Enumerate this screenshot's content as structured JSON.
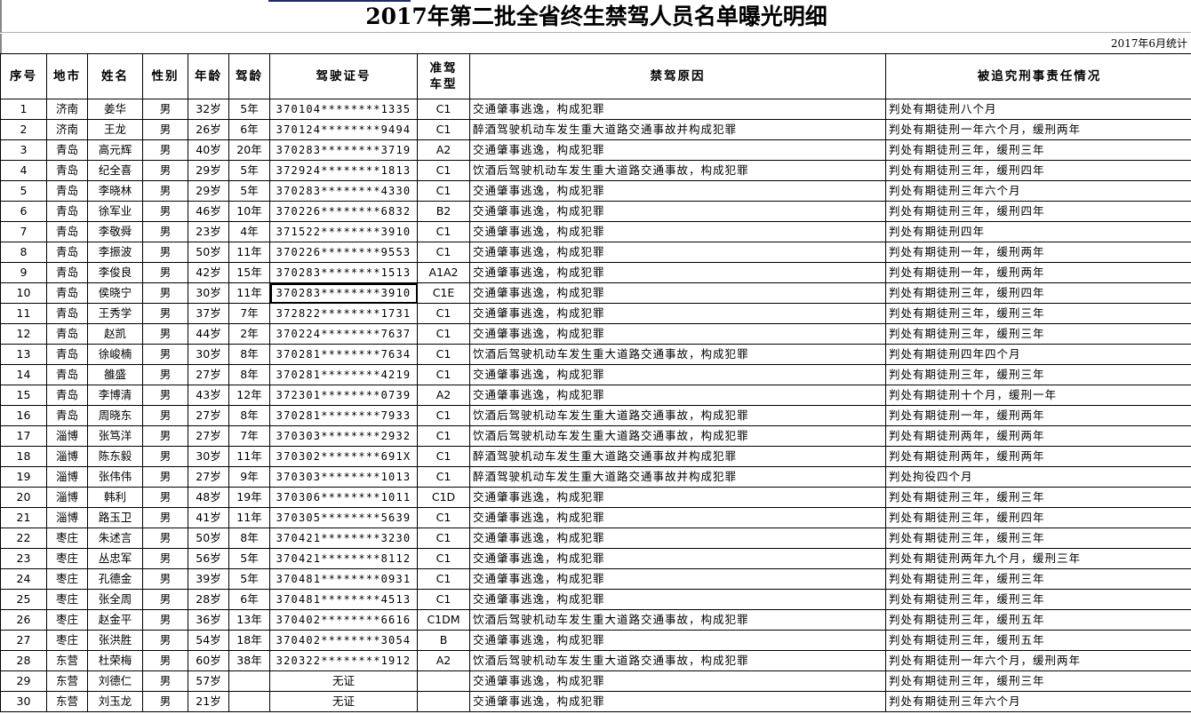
{
  "title": "2017年第二批全省终生禁驾人员名单曝光明细",
  "stat_date": "2017年6月统计",
  "headers": [
    "序号",
    "地市",
    "姓名",
    "性别",
    "年龄",
    "驾龄",
    "驾驶证号",
    "准驾车型",
    "禁驾原因",
    "被追究刑事责任情况"
  ],
  "rows": [
    [
      "1",
      "济南",
      "姜华",
      "男",
      "32岁",
      "5年",
      "370104********1335",
      "C1",
      "交通肇事逃逸，构成犯罪",
      "判处有期徒刑八个月"
    ],
    [
      "2",
      "济南",
      "王龙",
      "男",
      "26岁",
      "6年",
      "370124********9494",
      "C1",
      "醉酒驾驶机动车发生重大道路交通事故并构成犯罪",
      "判处有期徒刑一年六个月，缓刑两年"
    ],
    [
      "3",
      "青岛",
      "高元辉",
      "男",
      "40岁",
      "20年",
      "370283********3719",
      "A2",
      "交通肇事逃逸，构成犯罪",
      "判处有期徒刑三年，缓刑三年"
    ],
    [
      "4",
      "青岛",
      "纪全喜",
      "男",
      "29岁",
      "5年",
      "372924********1813",
      "C1",
      "饮酒后驾驶机动车发生重大道路交通事故，构成犯罪",
      "判处有期徒刑三年，缓刑四年"
    ],
    [
      "5",
      "青岛",
      "李晓林",
      "男",
      "29岁",
      "5年",
      "370283********4330",
      "C1",
      "交通肇事逃逸，构成犯罪",
      "判处有期徒刑三年六个月"
    ],
    [
      "6",
      "青岛",
      "徐军业",
      "男",
      "46岁",
      "10年",
      "370226********6832",
      "B2",
      "交通肇事逃逸，构成犯罪",
      "判处有期徒刑三年，缓刑四年"
    ],
    [
      "7",
      "青岛",
      "李敬舜",
      "男",
      "23岁",
      "4年",
      "371522********3910",
      "C1",
      "交通肇事逃逸，构成犯罪",
      "判处有期徒刑四年"
    ],
    [
      "8",
      "青岛",
      "李振波",
      "男",
      "50岁",
      "11年",
      "370226********9553",
      "C1",
      "交通肇事逃逸，构成犯罪",
      "判处有期徒刑一年，缓刑两年"
    ],
    [
      "9",
      "青岛",
      "李俊良",
      "男",
      "42岁",
      "15年",
      "370283********1513",
      "A1A2",
      "交通肇事逃逸，构成犯罪",
      "判处有期徒刑一年，缓刑两年"
    ],
    [
      "10",
      "青岛",
      "侯晓宁",
      "男",
      "30岁",
      "11年",
      "370283********3910",
      "C1E",
      "交通肇事逃逸，构成犯罪",
      "判处有期徒刑三年，缓刑四年"
    ],
    [
      "11",
      "青岛",
      "王秀学",
      "男",
      "37岁",
      "7年",
      "372822********1731",
      "C1",
      "交通肇事逃逸，构成犯罪",
      "判处有期徒刑三年，缓刑三年"
    ],
    [
      "12",
      "青岛",
      "赵凯",
      "男",
      "44岁",
      "2年",
      "370224********7637",
      "C1",
      "交通肇事逃逸，构成犯罪",
      "判处有期徒刑三年，缓刑三年"
    ],
    [
      "13",
      "青岛",
      "徐峻楠",
      "男",
      "30岁",
      "8年",
      "370281********7634",
      "C1",
      "饮酒后驾驶机动车发生重大道路交通事故，构成犯罪",
      "判处有期徒刑四年四个月"
    ],
    [
      "14",
      "青岛",
      "雒盛",
      "男",
      "27岁",
      "8年",
      "370281********4219",
      "C1",
      "交通肇事逃逸，构成犯罪",
      "判处有期徒刑三年，缓刑三年"
    ],
    [
      "15",
      "青岛",
      "李博清",
      "男",
      "43岁",
      "12年",
      "372301********0739",
      "A2",
      "交通肇事逃逸，构成犯罪",
      "判处有期徒刑十个月，缓刑一年"
    ],
    [
      "16",
      "青岛",
      "周晓东",
      "男",
      "27岁",
      "8年",
      "370281********7933",
      "C1",
      "饮酒后驾驶机动车发生重大道路交通事故，构成犯罪",
      "判处有期徒刑一年，缓刑两年"
    ],
    [
      "17",
      "淄博",
      "张笃洋",
      "男",
      "27岁",
      "7年",
      "370303********2932",
      "C1",
      "饮酒后驾驶机动车发生重大道路交通事故，构成犯罪",
      "判处有期徒刑两年，缓刑两年"
    ],
    [
      "18",
      "淄博",
      "陈东毅",
      "男",
      "30岁",
      "11年",
      "370302********691X",
      "C1",
      "醉酒驾驶机动车发生重大道路交通事故并构成犯罪",
      "判处有期徒刑两年，缓刑两年"
    ],
    [
      "19",
      "淄博",
      "张伟伟",
      "男",
      "27岁",
      "9年",
      "370303********1013",
      "C1",
      "醉酒驾驶机动车发生重大道路交通事故并构成犯罪",
      "判处拘役四个月"
    ],
    [
      "20",
      "淄博",
      "韩利",
      "男",
      "48岁",
      "19年",
      "370306********1011",
      "C1D",
      "交通肇事逃逸，构成犯罪",
      "判处有期徒刑三年，缓刑三年"
    ],
    [
      "21",
      "淄博",
      "路玉卫",
      "男",
      "41岁",
      "11年",
      "370305********5639",
      "C1",
      "交通肇事逃逸，构成犯罪",
      "判处有期徒刑三年，缓刑四年"
    ],
    [
      "22",
      "枣庄",
      "朱述言",
      "男",
      "50岁",
      "8年",
      "370421********3230",
      "C1",
      "交通肇事逃逸，构成犯罪",
      "判处有期徒刑三年，缓刑三年"
    ],
    [
      "23",
      "枣庄",
      "丛忠军",
      "男",
      "56岁",
      "5年",
      "370421********8112",
      "C1",
      "交通肇事逃逸，构成犯罪",
      "判处有期徒刑两年九个月，缓刑三年"
    ],
    [
      "24",
      "枣庄",
      "孔德金",
      "男",
      "39岁",
      "5年",
      "370481********0931",
      "C1",
      "交通肇事逃逸，构成犯罪",
      "判处有期徒刑三年，缓刑三年"
    ],
    [
      "25",
      "枣庄",
      "张全周",
      "男",
      "28岁",
      "6年",
      "370481********4513",
      "C1",
      "交通肇事逃逸，构成犯罪",
      "判处有期徒刑三年，缓刑三年"
    ],
    [
      "26",
      "枣庄",
      "赵金平",
      "男",
      "36岁",
      "13年",
      "370402********6616",
      "C1DM",
      "饮酒后驾驶机动车发生重大道路交通事故，构成犯罪",
      "判处有期徒刑三年，缓刑五年"
    ],
    [
      "27",
      "枣庄",
      "张洪胜",
      "男",
      "54岁",
      "18年",
      "370402********3054",
      "B",
      "交通肇事逃逸，构成犯罪",
      "判处有期徒刑三年，缓刑五年"
    ],
    [
      "28",
      "东营",
      "杜荣梅",
      "男",
      "60岁",
      "38年",
      "320322********1912",
      "A2",
      "饮酒后驾驶机动车发生重大道路交通事故，构成犯罪",
      "判处有期徒刑一年六个月，缓刑两年"
    ],
    [
      "29",
      "东营",
      "刘德仁",
      "男",
      "57岁",
      "",
      "无证",
      "",
      "交通肇事逃逸，构成犯罪",
      "判处有期徒刑三年，缓刑三年"
    ],
    [
      "30",
      "东营",
      "刘玉龙",
      "男",
      "21岁",
      "",
      "无证",
      "",
      "交通肇事逃逸，构成犯罪",
      "判处有期徒刑三年六个月"
    ]
  ]
}
